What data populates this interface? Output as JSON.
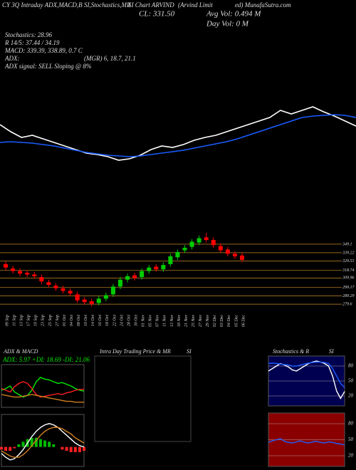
{
  "header": {
    "line1": "CY 3Q Intraday ADX,MACD,B",
    "line1b": "SI,Stochastics,MR",
    "line1c": "SI Chart ARVIND",
    "line1d": "(Arvind Limit",
    "line1e": "ed) MunafaSutra.com",
    "cl": "CL: 331.50",
    "avg_vol": "Avg Vol: 0.494  M",
    "day_vol": "Day Vol: 0  M",
    "stoch": "Stochastics: 28.96",
    "rsi": "R 14/5: 37.44 / 34.19",
    "macd": "MACD: 339.39, 338.89, 0.7 C",
    "adx": "ADX:",
    "adx_vals": "(MGR) 6, 18.7, 21.1",
    "adx_signal": "ADX  signal: SELL Sloping @ 8%",
    "panel_adx": "ADX  & MACD",
    "adx_readout": "ADX: 5.97 +DI: 18.69 -DI: 21.06",
    "panel_intraday": "Intra Day Trading Price  & MR",
    "panel_intraday_b": "SI",
    "panel_stoch": "Stochastics & R",
    "panel_stoch_b": "SI"
  },
  "chart_data": [
    {
      "type": "line",
      "ylim": [
        0,
        120
      ],
      "series": [
        {
          "color": "#ffffff",
          "values": [
            70,
            60,
            52,
            55,
            50,
            45,
            40,
            35,
            30,
            28,
            25,
            20,
            22,
            27,
            35,
            40,
            38,
            42,
            48,
            52,
            55,
            60,
            65,
            70,
            75,
            80,
            90,
            85,
            90,
            95,
            88,
            82,
            75,
            68
          ]
        },
        {
          "color": "#1a5cff",
          "values": [
            45,
            46,
            45,
            44,
            42,
            40,
            37,
            34,
            31,
            29,
            27,
            26,
            25,
            26,
            28,
            30,
            32,
            34,
            37,
            40,
            43,
            46,
            50,
            55,
            60,
            65,
            70,
            75,
            80,
            82,
            83,
            84,
            83,
            80
          ]
        }
      ]
    },
    {
      "type": "candlestick",
      "ylim": [
        269,
        368
      ],
      "yticks": [
        349.1,
        339.22,
        329.53,
        318.74,
        309.96,
        299.17,
        289.29,
        279.6
      ],
      "up_color": "#00cc00",
      "down_color": "#ff0000",
      "grid_color": "#c88a2a",
      "categories": [
        "09 Sep",
        "11 Sep",
        "13 Sep",
        "17 Sep",
        "19 Sep",
        "23 Sep",
        "25 Sep",
        "27 Sep",
        "01 Oct",
        "04 Oct",
        "08 Oct",
        "10 Oct",
        "14 Oct",
        "16 Oct",
        "18 Oct",
        "22 Oct",
        "24 Oct",
        "28 Oct",
        "30 Oct",
        "01 Nov",
        "05 Nov",
        "07 Nov",
        "11 Nov",
        "13 Nov",
        "18 Nov",
        "21 Nov",
        "25 Nov",
        "27 Nov",
        "29 Nov",
        "02 Dec",
        "03 Dec",
        "04 Dec",
        "05 Dec",
        "06 Dec"
      ],
      "open": [
        326,
        321,
        318,
        316,
        314,
        311,
        305,
        301,
        298,
        295,
        291,
        285,
        283,
        281,
        286,
        291,
        300,
        308,
        313,
        311,
        318,
        323,
        320,
        326,
        334,
        342,
        346,
        351,
        357,
        354,
        347,
        343,
        338,
        336
      ],
      "high": [
        329,
        324,
        321,
        319,
        317,
        314,
        308,
        304,
        301,
        298,
        294,
        288,
        286,
        289,
        293,
        303,
        311,
        315,
        316,
        321,
        325,
        326,
        328,
        338,
        343,
        348,
        355,
        359,
        362,
        357,
        350,
        346,
        341,
        339
      ],
      "low": [
        319,
        315,
        312,
        311,
        309,
        303,
        299,
        295,
        292,
        289,
        281,
        279,
        277,
        278,
        283,
        288,
        297,
        305,
        307,
        308,
        315,
        317,
        317,
        323,
        331,
        339,
        343,
        348,
        351,
        345,
        339,
        335,
        332,
        328
      ],
      "close": [
        322,
        318,
        315,
        314,
        312,
        306,
        302,
        298,
        295,
        292,
        284,
        282,
        280,
        286,
        290,
        300,
        308,
        312,
        310,
        318,
        322,
        320,
        325,
        335,
        340,
        345,
        352,
        356,
        354,
        348,
        342,
        338,
        335,
        331
      ]
    },
    {
      "type": "line",
      "ylim": [
        0,
        50
      ],
      "series": [
        {
          "color": "#00ee00",
          "values": [
            20,
            22,
            25,
            18,
            15,
            12,
            14,
            20,
            30,
            35,
            33,
            32,
            30,
            28,
            29,
            27,
            25,
            22,
            20,
            19
          ]
        },
        {
          "color": "#ff2020",
          "values": [
            22,
            20,
            18,
            24,
            28,
            30,
            28,
            22,
            15,
            12,
            13,
            14,
            15,
            16,
            15,
            17,
            18,
            20,
            21,
            21
          ]
        },
        {
          "color": "#d08020",
          "values": [
            15,
            14,
            13,
            12,
            12,
            13,
            14,
            15,
            14,
            13,
            12,
            11,
            10,
            9,
            8,
            7,
            7,
            6,
            6,
            6
          ]
        }
      ]
    },
    {
      "type": "line",
      "ylim": [
        -15,
        25
      ],
      "histogram": [
        -2,
        -3,
        -3,
        -1,
        2,
        4,
        6,
        7,
        7,
        6,
        5,
        4,
        2,
        0,
        -2,
        -3,
        -4,
        -4,
        -4,
        -3
      ],
      "series": [
        {
          "color": "#ffffff",
          "values": [
            -5,
            -8,
            -10,
            -9,
            -6,
            -2,
            3,
            8,
            12,
            15,
            17,
            18,
            17,
            15,
            12,
            9,
            6,
            3,
            1,
            0
          ]
        },
        {
          "color": "#d08020",
          "values": [
            -3,
            -5,
            -7,
            -8,
            -8,
            -6,
            -3,
            1,
            5,
            9,
            12,
            14,
            15,
            15,
            14,
            12,
            10,
            7,
            5,
            3
          ]
        }
      ]
    },
    {
      "type": "line",
      "ylim": [
        0,
        100
      ],
      "yticks": [
        20,
        50,
        80
      ],
      "background": "#000050",
      "series": [
        {
          "color": "#ffffff",
          "values": [
            70,
            75,
            80,
            85,
            82,
            78,
            72,
            70,
            75,
            80,
            85,
            88,
            90,
            88,
            85,
            80,
            60,
            30,
            15,
            29
          ]
        },
        {
          "color": "#1a5cff",
          "values": [
            85,
            86,
            85,
            84,
            83,
            82,
            80,
            80,
            82,
            84,
            86,
            87,
            88,
            88,
            87,
            85,
            75,
            60,
            45,
            37
          ]
        }
      ]
    },
    {
      "type": "line",
      "ylim": [
        0,
        100
      ],
      "yticks": [
        20,
        50,
        80
      ],
      "background": "#8a0000",
      "series": [
        {
          "color": "#2060ff",
          "values": [
            45,
            48,
            50,
            52,
            47,
            45,
            44,
            46,
            48,
            45,
            44,
            46,
            47,
            45,
            44,
            46,
            45,
            43,
            42,
            40
          ]
        }
      ]
    }
  ]
}
